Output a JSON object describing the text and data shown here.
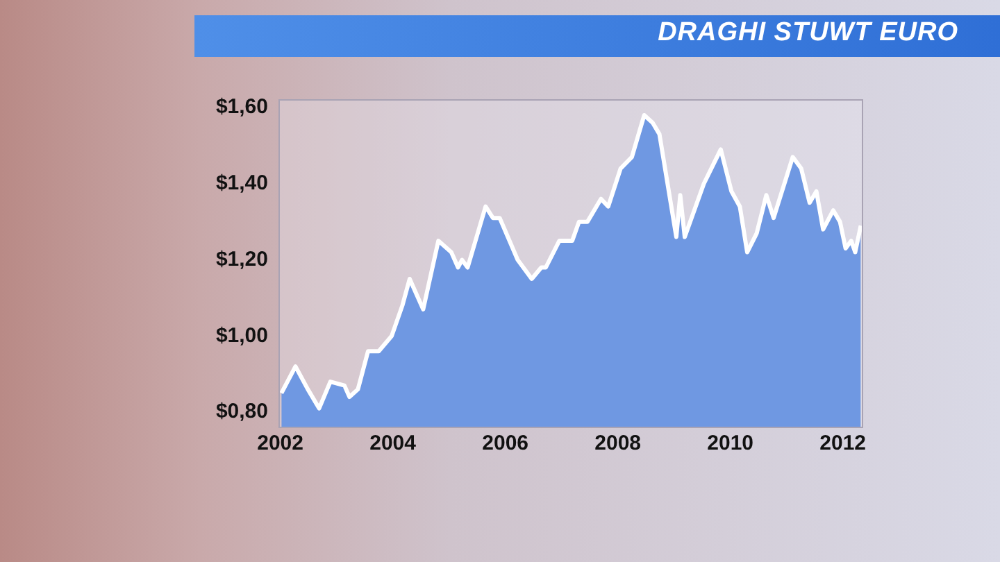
{
  "chart_data": {
    "type": "area",
    "title": "DRAGHI STUWT EURO",
    "x": [
      2002.02,
      2002.27,
      2002.49,
      2002.69,
      2002.89,
      2003.14,
      2003.23,
      2003.38,
      2003.56,
      2003.75,
      2003.98,
      2004.17,
      2004.3,
      2004.54,
      2004.81,
      2005.04,
      2005.16,
      2005.23,
      2005.33,
      2005.65,
      2005.78,
      2005.9,
      2006.22,
      2006.47,
      2006.64,
      2006.72,
      2006.96,
      2007.19,
      2007.31,
      2007.46,
      2007.7,
      2007.83,
      2008.05,
      2008.25,
      2008.47,
      2008.62,
      2008.74,
      2009.04,
      2009.11,
      2009.19,
      2009.53,
      2009.83,
      2010.02,
      2010.17,
      2010.3,
      2010.47,
      2010.64,
      2010.77,
      2011.11,
      2011.26,
      2011.41,
      2011.53,
      2011.65,
      2011.83,
      2011.95,
      2012.05,
      2012.15,
      2012.22,
      2012.32
    ],
    "series": [
      {
        "color": "#6f98e2",
        "values": [
          0.85,
          0.92,
          0.86,
          0.81,
          0.88,
          0.87,
          0.84,
          0.86,
          0.96,
          0.96,
          1.0,
          1.08,
          1.15,
          1.07,
          1.25,
          1.22,
          1.18,
          1.2,
          1.18,
          1.34,
          1.31,
          1.31,
          1.2,
          1.15,
          1.18,
          1.18,
          1.25,
          1.25,
          1.3,
          1.3,
          1.36,
          1.34,
          1.44,
          1.47,
          1.58,
          1.56,
          1.53,
          1.26,
          1.37,
          1.26,
          1.4,
          1.49,
          1.38,
          1.34,
          1.22,
          1.27,
          1.37,
          1.31,
          1.47,
          1.44,
          1.35,
          1.38,
          1.28,
          1.33,
          1.3,
          1.23,
          1.25,
          1.22,
          1.29
        ]
      }
    ],
    "xlim": [
      2001.98,
      2012.35
    ],
    "xticks": [
      2002,
      2004,
      2006,
      2008,
      2010,
      2012
    ],
    "ylim": [
      0.76,
      1.62
    ],
    "yticks": [
      {
        "value": 0.8,
        "label": "$0,80"
      },
      {
        "value": 1.0,
        "label": "$1,00"
      },
      {
        "value": 1.2,
        "label": "$1,20"
      },
      {
        "value": 1.4,
        "label": "$1,40"
      },
      {
        "value": 1.6,
        "label": "$1,60"
      }
    ],
    "grid": false,
    "legend": false,
    "marker": "none",
    "line_style": "solid"
  }
}
